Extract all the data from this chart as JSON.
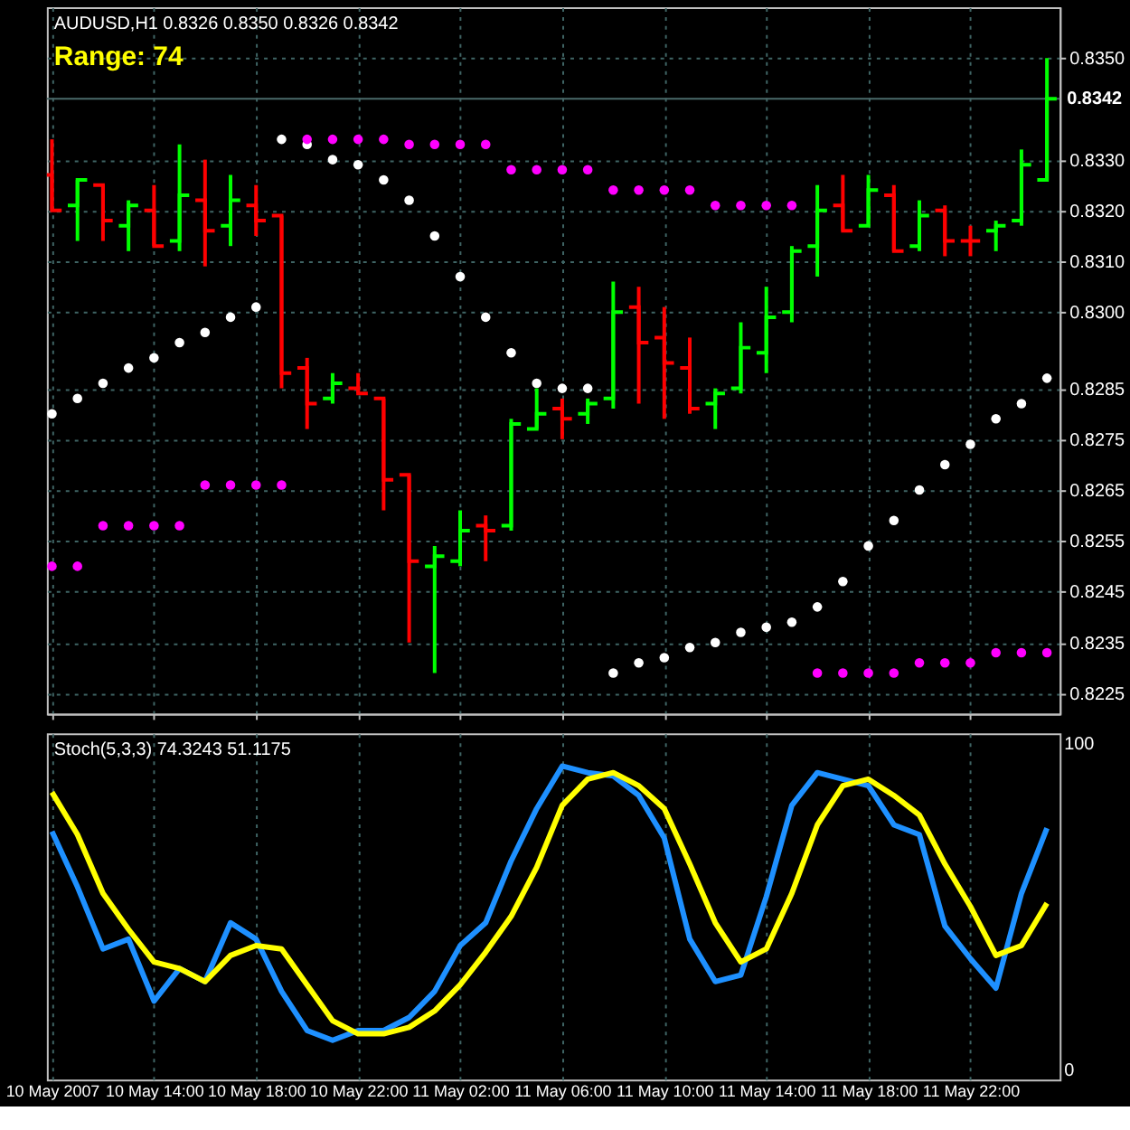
{
  "chart_data": [
    {
      "type": "candlestick",
      "title": "AUDUSD,H1 0.8326 0.8350 0.8326 0.8342",
      "annotations": [
        "Range: 74"
      ],
      "x": [
        "2007-05-10T10:00",
        "2007-05-10T11:00",
        "2007-05-10T12:00",
        "2007-05-10T13:00",
        "2007-05-10T14:00",
        "2007-05-10T15:00",
        "2007-05-10T16:00",
        "2007-05-10T17:00",
        "2007-05-10T18:00",
        "2007-05-10T19:00",
        "2007-05-10T20:00",
        "2007-05-10T21:00",
        "2007-05-10T22:00",
        "2007-05-10T23:00",
        "2007-05-11T00:00",
        "2007-05-11T01:00",
        "2007-05-11T02:00",
        "2007-05-11T03:00",
        "2007-05-11T04:00",
        "2007-05-11T05:00",
        "2007-05-11T06:00",
        "2007-05-11T07:00",
        "2007-05-11T08:00",
        "2007-05-11T09:00",
        "2007-05-11T10:00",
        "2007-05-11T11:00",
        "2007-05-11T12:00",
        "2007-05-11T13:00",
        "2007-05-11T14:00",
        "2007-05-11T15:00",
        "2007-05-11T16:00",
        "2007-05-11T17:00",
        "2007-05-11T18:00",
        "2007-05-11T19:00",
        "2007-05-11T20:00",
        "2007-05-11T21:00",
        "2007-05-11T22:00",
        "2007-05-11T23:00",
        "2007-05-12T00:00",
        "2007-05-12T01:00"
      ],
      "ohlc": [
        [
          0.8327,
          0.8334,
          0.832,
          0.832
        ],
        [
          0.8321,
          0.8326,
          0.8314,
          0.8326
        ],
        [
          0.8325,
          0.8325,
          0.8314,
          0.8318
        ],
        [
          0.8317,
          0.8322,
          0.8312,
          0.8321
        ],
        [
          0.832,
          0.8325,
          0.8313,
          0.8313
        ],
        [
          0.8314,
          0.8333,
          0.8312,
          0.8323
        ],
        [
          0.8322,
          0.833,
          0.8309,
          0.8316
        ],
        [
          0.8317,
          0.8327,
          0.8313,
          0.8322
        ],
        [
          0.8321,
          0.8325,
          0.8315,
          0.8318
        ],
        [
          0.8319,
          0.8319,
          0.8285,
          0.8288
        ],
        [
          0.8289,
          0.8291,
          0.8277,
          0.8282
        ],
        [
          0.8283,
          0.8288,
          0.8282,
          0.8286
        ],
        [
          0.8285,
          0.8288,
          0.8284,
          0.8284
        ],
        [
          0.8283,
          0.8283,
          0.8261,
          0.8267
        ],
        [
          0.8268,
          0.8268,
          0.8235,
          0.8251
        ],
        [
          0.825,
          0.8254,
          0.8229,
          0.8252
        ],
        [
          0.8251,
          0.8261,
          0.825,
          0.8257
        ],
        [
          0.8258,
          0.826,
          0.8251,
          0.8257
        ],
        [
          0.8258,
          0.8279,
          0.8257,
          0.8278
        ],
        [
          0.8277,
          0.8285,
          0.8277,
          0.828
        ],
        [
          0.8281,
          0.8283,
          0.8275,
          0.8279
        ],
        [
          0.828,
          0.8283,
          0.8278,
          0.8282
        ],
        [
          0.8283,
          0.8306,
          0.8281,
          0.83
        ],
        [
          0.8301,
          0.8305,
          0.8282,
          0.8294
        ],
        [
          0.8295,
          0.8301,
          0.8279,
          0.829
        ],
        [
          0.8289,
          0.8295,
          0.828,
          0.8281
        ],
        [
          0.8282,
          0.8285,
          0.8277,
          0.8284
        ],
        [
          0.8285,
          0.8298,
          0.8284,
          0.8293
        ],
        [
          0.8292,
          0.8305,
          0.8288,
          0.8299
        ],
        [
          0.83,
          0.8313,
          0.8298,
          0.8312
        ],
        [
          0.8313,
          0.8325,
          0.8307,
          0.832
        ],
        [
          0.8321,
          0.8327,
          0.8316,
          0.8316
        ],
        [
          0.8317,
          0.8327,
          0.8317,
          0.8324
        ],
        [
          0.8323,
          0.8325,
          0.8312,
          0.8312
        ],
        [
          0.8313,
          0.8322,
          0.8312,
          0.8319
        ],
        [
          0.832,
          0.8321,
          0.8311,
          0.8314
        ],
        [
          0.8314,
          0.8317,
          0.8311,
          0.8314
        ],
        [
          0.8316,
          0.8318,
          0.8312,
          0.8317
        ],
        [
          0.8318,
          0.8332,
          0.8317,
          0.8329
        ],
        [
          0.8326,
          0.835,
          0.8326,
          0.8342
        ]
      ],
      "colors": [
        "#ff0000",
        "#00ff00",
        "#ff0000",
        "#00ff00",
        "#ff0000",
        "#00ff00",
        "#ff0000",
        "#00ff00",
        "#ff0000",
        "#ff0000",
        "#ff0000",
        "#00ff00",
        "#ff0000",
        "#ff0000",
        "#ff0000",
        "#00ff00",
        "#00ff00",
        "#ff0000",
        "#00ff00",
        "#00ff00",
        "#ff0000",
        "#00ff00",
        "#00ff00",
        "#ff0000",
        "#ff0000",
        "#ff0000",
        "#00ff00",
        "#00ff00",
        "#00ff00",
        "#00ff00",
        "#00ff00",
        "#ff0000",
        "#00ff00",
        "#ff0000",
        "#00ff00",
        "#ff0000",
        "#ff0000",
        "#00ff00",
        "#00ff00",
        "#00ff00"
      ],
      "series": [
        {
          "type": "scatter",
          "color": "#ffffff",
          "values": [
            0.828,
            0.8283,
            0.8286,
            0.8289,
            0.8291,
            0.8294,
            0.8296,
            0.8299,
            0.8301,
            0.8334,
            0.8333,
            0.833,
            0.8329,
            0.8326,
            0.8322,
            0.8315,
            0.8307,
            0.8299,
            0.8292,
            0.8286,
            0.8285,
            0.8285,
            0.8229,
            0.8231,
            0.8232,
            0.8234,
            0.8235,
            0.8237,
            0.8238,
            0.8239,
            0.8242,
            0.8247,
            0.8254,
            0.8259,
            0.8265,
            0.827,
            0.8274,
            0.8279,
            0.8282,
            0.8287
          ]
        },
        {
          "type": "scatter",
          "color": "#ff00ff",
          "values": [
            0.825,
            0.825,
            0.8258,
            0.8258,
            0.8258,
            0.8258,
            0.8266,
            0.8266,
            0.8266,
            0.8266,
            0.8334,
            0.8334,
            0.8334,
            0.8334,
            0.8333,
            0.8333,
            0.8333,
            0.8333,
            0.8328,
            0.8328,
            0.8328,
            0.8328,
            0.8324,
            0.8324,
            0.8324,
            0.8324,
            0.8321,
            0.8321,
            0.8321,
            0.8321,
            0.8229,
            0.8229,
            0.8229,
            0.8229,
            0.8231,
            0.8231,
            0.8231,
            0.8233,
            0.8233,
            0.8233
          ]
        }
      ],
      "marker": "circle",
      "ref_lines": [
        {
          "axis": "y",
          "value": 0.8342,
          "label": "0.8342",
          "color": "#4a6a6a"
        }
      ],
      "xlim": [
        "2007-05-10T09:48",
        "2007-05-12T01:30"
      ],
      "xticks": [
        "2007-05-10T10:00",
        "2007-05-10T14:00",
        "2007-05-10T18:00",
        "2007-05-10T22:00",
        "2007-05-11T02:00",
        "2007-05-11T06:00",
        "2007-05-11T10:00",
        "2007-05-11T14:00",
        "2007-05-11T18:00",
        "2007-05-11T22:00"
      ],
      "ylim": [
        0.8221,
        0.836
      ],
      "yticks": [
        {
          "value": 0.8225,
          "label": "0.8225"
        },
        {
          "value": 0.8235,
          "label": "0.8235"
        },
        {
          "value": 0.8245,
          "label": "0.8245"
        },
        {
          "value": 0.8255,
          "label": "0.8255"
        },
        {
          "value": 0.8265,
          "label": "0.8265"
        },
        {
          "value": 0.8275,
          "label": "0.8275"
        },
        {
          "value": 0.8285,
          "label": "0.8285"
        },
        {
          "value": 0.83,
          "label": "0.8300"
        },
        {
          "value": 0.831,
          "label": "0.8310"
        },
        {
          "value": 0.832,
          "label": "0.8320"
        },
        {
          "value": 0.833,
          "label": "0.8330"
        },
        {
          "value": 0.835,
          "label": "0.8350"
        }
      ],
      "grid": true,
      "tick_labels": "y"
    },
    {
      "type": "line",
      "title": "Stoch(5,3,3) 74.3243 51.1175",
      "x": [
        "2007-05-10T10:00",
        "2007-05-10T11:00",
        "2007-05-10T12:00",
        "2007-05-10T13:00",
        "2007-05-10T14:00",
        "2007-05-10T15:00",
        "2007-05-10T16:00",
        "2007-05-10T17:00",
        "2007-05-10T18:00",
        "2007-05-10T19:00",
        "2007-05-10T20:00",
        "2007-05-10T21:00",
        "2007-05-10T22:00",
        "2007-05-10T23:00",
        "2007-05-11T00:00",
        "2007-05-11T01:00",
        "2007-05-11T02:00",
        "2007-05-11T03:00",
        "2007-05-11T04:00",
        "2007-05-11T05:00",
        "2007-05-11T06:00",
        "2007-05-11T07:00",
        "2007-05-11T08:00",
        "2007-05-11T09:00",
        "2007-05-11T10:00",
        "2007-05-11T11:00",
        "2007-05-11T12:00",
        "2007-05-11T13:00",
        "2007-05-11T14:00",
        "2007-05-11T15:00",
        "2007-05-11T16:00",
        "2007-05-11T17:00",
        "2007-05-11T18:00",
        "2007-05-11T19:00",
        "2007-05-11T20:00",
        "2007-05-11T21:00",
        "2007-05-11T22:00",
        "2007-05-11T23:00",
        "2007-05-12T00:00",
        "2007-05-12T01:00"
      ],
      "series": [
        {
          "color": "#1e90ff",
          "values": [
            73,
            56,
            37,
            40,
            21,
            31,
            27,
            45,
            40,
            24,
            12,
            9,
            12,
            12,
            16,
            24,
            38,
            45,
            64,
            80,
            93,
            91,
            90,
            84,
            71,
            40,
            27,
            29,
            53,
            81,
            91,
            89,
            87,
            75,
            72,
            44,
            34,
            25,
            54,
            74
          ]
        },
        {
          "color": "#ffff00",
          "values": [
            85,
            72,
            54,
            43,
            33,
            31,
            27,
            35,
            38,
            37,
            26,
            15,
            11,
            11,
            13,
            18,
            26,
            36,
            47,
            62,
            81,
            89,
            91,
            87,
            80,
            63,
            45,
            33,
            37,
            54,
            75,
            87,
            89,
            84,
            78,
            63,
            50,
            35,
            38,
            51
          ]
        }
      ],
      "line_style": "solid",
      "xlim": [
        "2007-05-10T09:48",
        "2007-05-12T01:30"
      ],
      "xticks": [
        {
          "value": "2007-05-10T10:00",
          "label": "10 May 2007"
        },
        {
          "value": "2007-05-10T14:00",
          "label": "10 May 14:00"
        },
        {
          "value": "2007-05-10T18:00",
          "label": "10 May 18:00"
        },
        {
          "value": "2007-05-10T22:00",
          "label": "10 May 22:00"
        },
        {
          "value": "2007-05-11T02:00",
          "label": "11 May 02:00"
        },
        {
          "value": "2007-05-11T06:00",
          "label": "11 May 06:00"
        },
        {
          "value": "2007-05-11T10:00",
          "label": "11 May 10:00"
        },
        {
          "value": "2007-05-11T14:00",
          "label": "11 May 14:00"
        },
        {
          "value": "2007-05-11T18:00",
          "label": "11 May 18:00"
        },
        {
          "value": "2007-05-11T22:00",
          "label": "11 May 22:00"
        }
      ],
      "ylim": [
        -3,
        103
      ],
      "yticks": [
        0,
        100
      ],
      "grid": "x"
    }
  ]
}
